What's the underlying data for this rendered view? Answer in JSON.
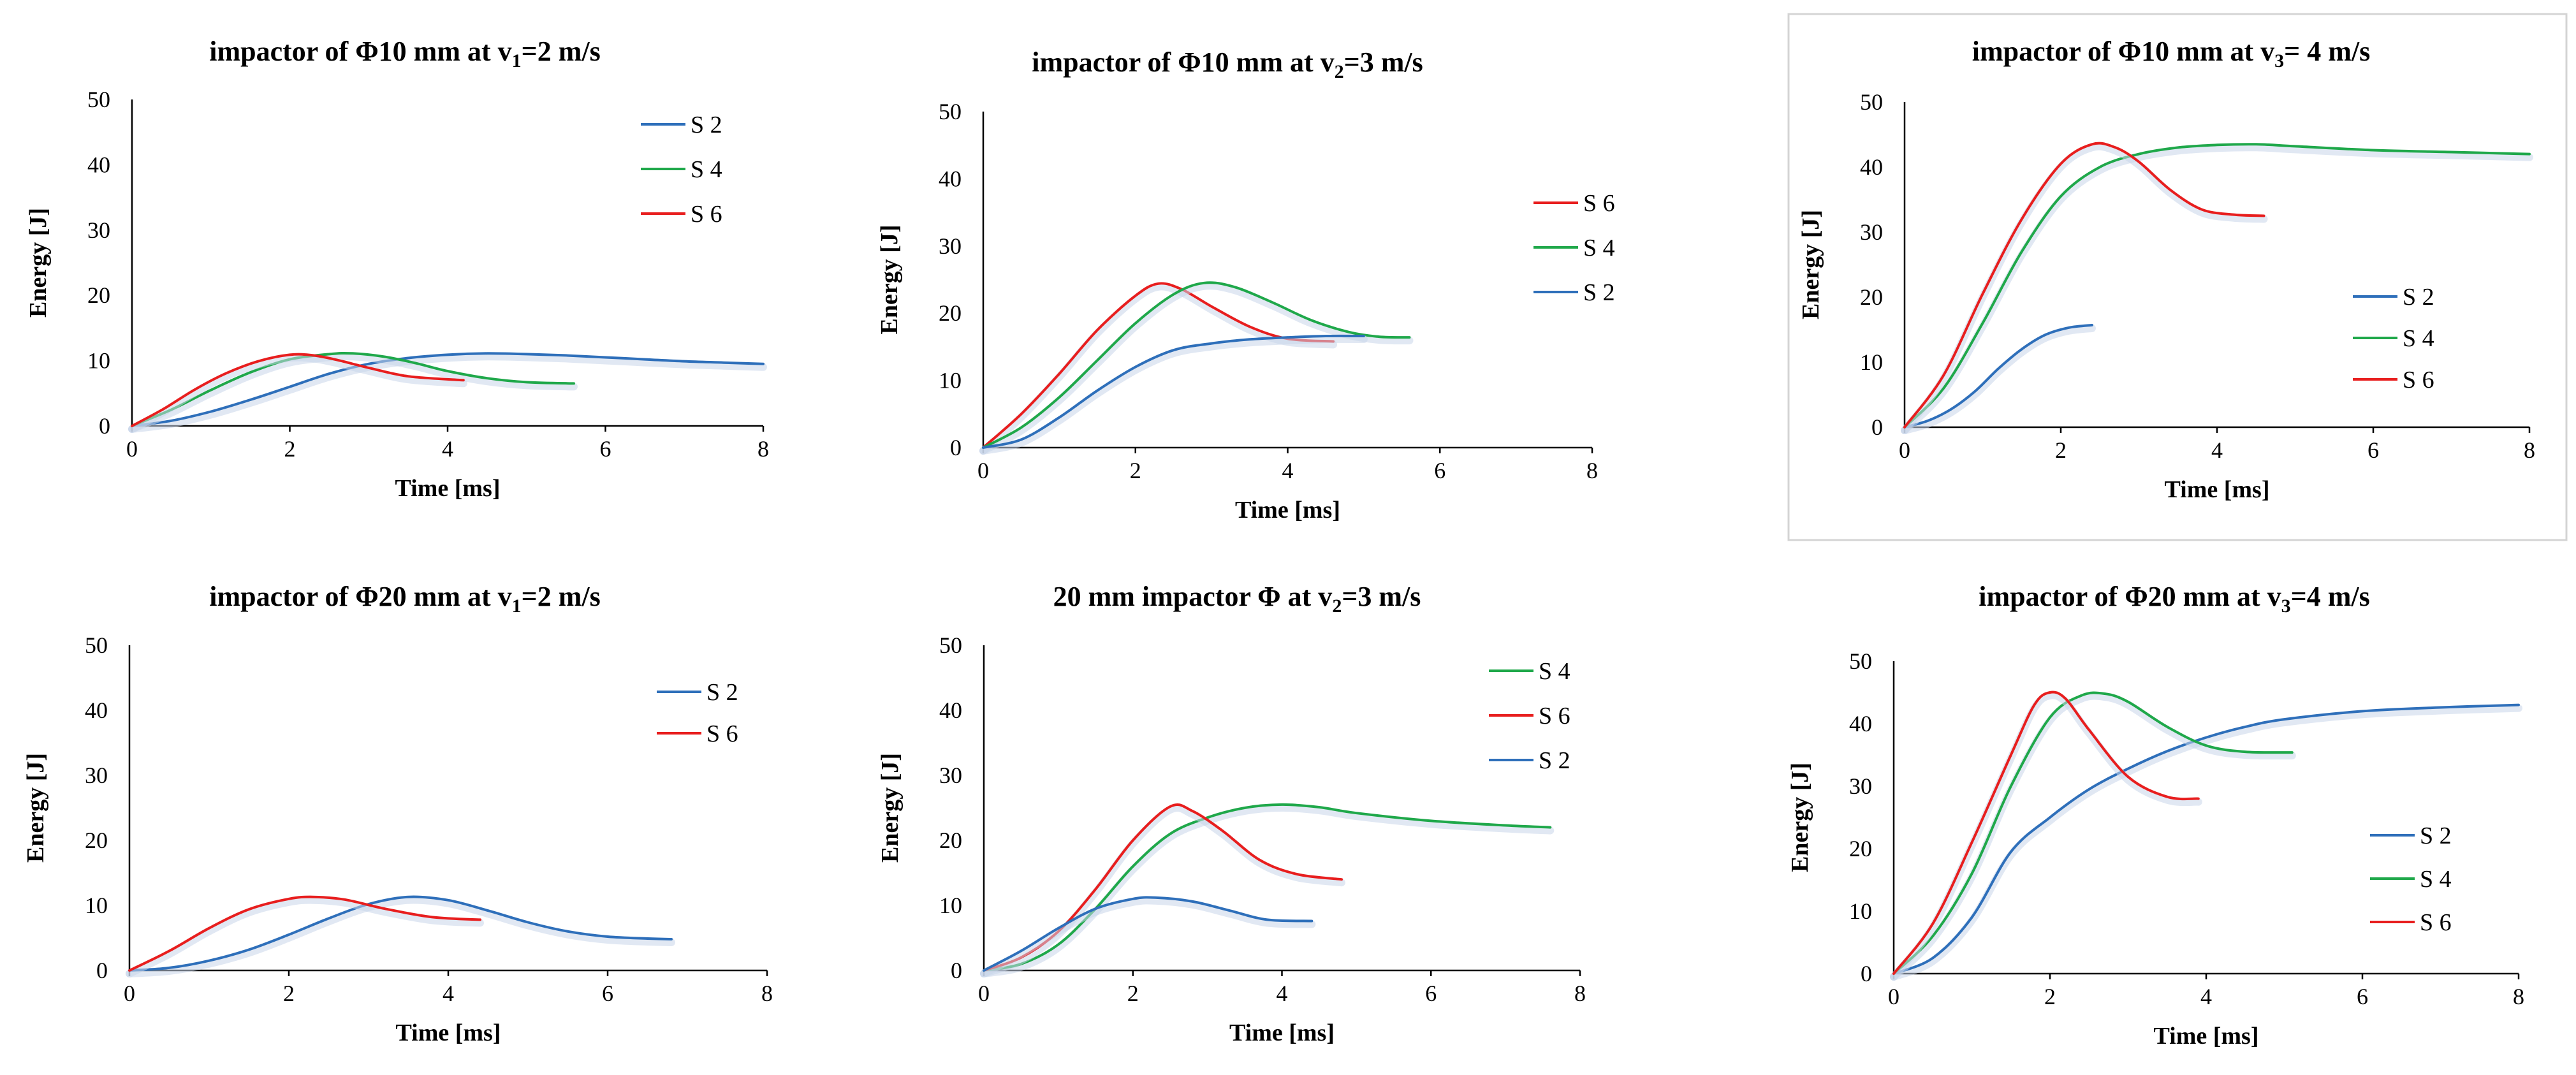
{
  "colors": {
    "S 2": "#2e6fba",
    "S 4": "#1fa84a",
    "S 6": "#e81e1e",
    "axis": "#000000",
    "frame": "#d4d4d4"
  },
  "chart_data": [
    {
      "type": "line",
      "title_pre": "impactor of Φ10 mm at v",
      "title_sub": "1",
      "title_post": "=2 m/s",
      "xlabel": "Time [ms]",
      "ylabel": "Energy [J]",
      "xlim": [
        0,
        8
      ],
      "ylim": [
        0,
        50
      ],
      "xticks": [
        "0",
        "2",
        "4",
        "6",
        "8"
      ],
      "yticks": [
        "0",
        "10",
        "20",
        "30",
        "40",
        "50"
      ],
      "legend": [
        "S 2",
        "S 4",
        "S 6"
      ],
      "series": [
        {
          "name": "S 2",
          "x": [
            0,
            0.5,
            1,
            1.5,
            2,
            2.5,
            3,
            3.5,
            4,
            4.5,
            5,
            5.5,
            6,
            6.5,
            7,
            7.5,
            8
          ],
          "y": [
            0,
            0.8,
            2.2,
            4,
            6,
            8,
            9.5,
            10.4,
            10.9,
            11.1,
            11,
            10.8,
            10.5,
            10.2,
            9.9,
            9.7,
            9.5
          ]
        },
        {
          "name": "S 4",
          "x": [
            0,
            0.5,
            1,
            1.5,
            2,
            2.5,
            2.8,
            3.2,
            3.6,
            4,
            4.5,
            5,
            5.6
          ],
          "y": [
            0,
            2.5,
            5.5,
            8.2,
            10.2,
            11,
            11.1,
            10.6,
            9.6,
            8.4,
            7.3,
            6.7,
            6.5
          ]
        },
        {
          "name": "S 6",
          "x": [
            0,
            0.4,
            0.8,
            1.2,
            1.6,
            2,
            2.3,
            2.6,
            3,
            3.5,
            4.2
          ],
          "y": [
            0,
            2.6,
            5.6,
            8.1,
            9.9,
            10.9,
            10.8,
            10.1,
            8.9,
            7.6,
            7
          ]
        }
      ]
    },
    {
      "type": "line",
      "title_pre": "impactor of Φ10 mm at v",
      "title_sub": "2",
      "title_post": "=3 m/s",
      "xlabel": "Time [ms]",
      "ylabel": "Energy [J]",
      "xlim": [
        0,
        8
      ],
      "ylim": [
        0,
        50
      ],
      "xticks": [
        "0",
        "2",
        "4",
        "6",
        "8"
      ],
      "yticks": [
        "0",
        "10",
        "20",
        "30",
        "40",
        "50"
      ],
      "legend": [
        "S 6",
        "S 4",
        "S 2"
      ],
      "series": [
        {
          "name": "S 6",
          "x": [
            0,
            0.5,
            1,
            1.5,
            2,
            2.3,
            2.6,
            3,
            3.5,
            4,
            4.6
          ],
          "y": [
            0,
            5,
            11,
            17.5,
            22.6,
            24.4,
            23.6,
            21,
            18,
            16.2,
            15.8
          ]
        },
        {
          "name": "S 4",
          "x": [
            0,
            0.5,
            1,
            1.5,
            2,
            2.5,
            2.9,
            3.3,
            3.8,
            4.3,
            4.8,
            5.2,
            5.6
          ],
          "y": [
            0,
            3,
            7.5,
            13,
            18.5,
            22.8,
            24.5,
            23.9,
            21.6,
            19,
            17.2,
            16.5,
            16.4
          ]
        },
        {
          "name": "S 2",
          "x": [
            0,
            0.5,
            1,
            1.5,
            2,
            2.5,
            3,
            3.5,
            4,
            4.5,
            5
          ],
          "y": [
            0,
            1.2,
            4.5,
            8.5,
            12,
            14.5,
            15.5,
            16.1,
            16.4,
            16.6,
            16.6
          ]
        }
      ]
    },
    {
      "type": "line",
      "title_pre": "impactor of Φ10 mm at v",
      "title_sub": "3",
      "title_post": "= 4 m/s",
      "xlabel": "Time [ms]",
      "ylabel": "Energy [J]",
      "xlim": [
        0,
        8
      ],
      "ylim": [
        0,
        50
      ],
      "xticks": [
        "0",
        "2",
        "4",
        "6",
        "8"
      ],
      "yticks": [
        "0",
        "10",
        "20",
        "30",
        "40",
        "50"
      ],
      "legend": [
        "S 2",
        "S 4",
        "S 6"
      ],
      "series": [
        {
          "name": "S 2",
          "x": [
            0,
            0.3,
            0.6,
            0.9,
            1.2,
            1.5,
            1.8,
            2.1,
            2.4
          ],
          "y": [
            0,
            1,
            2.8,
            5.5,
            9,
            12,
            14.2,
            15.3,
            15.7
          ]
        },
        {
          "name": "S 4",
          "x": [
            0,
            0.5,
            1,
            1.5,
            2,
            2.5,
            3,
            3.5,
            4,
            4.5,
            5,
            6,
            7,
            8
          ],
          "y": [
            0,
            6,
            16,
            27,
            35.5,
            40,
            42,
            43,
            43.4,
            43.5,
            43.2,
            42.6,
            42.3,
            42
          ]
        },
        {
          "name": "S 6",
          "x": [
            0,
            0.5,
            1,
            1.5,
            2,
            2.4,
            2.7,
            3,
            3.4,
            3.8,
            4.2,
            4.6
          ],
          "y": [
            0,
            8,
            20.5,
            32,
            40.5,
            43.5,
            43,
            40.8,
            36.5,
            33.5,
            32.7,
            32.5
          ]
        }
      ]
    },
    {
      "type": "line",
      "title_pre": "impactor of Φ20 mm at v",
      "title_sub": "1",
      "title_post": "=2 m/s",
      "xlabel": "Time [ms]",
      "ylabel": "Energy [J]",
      "xlim": [
        0,
        8
      ],
      "ylim": [
        0,
        50
      ],
      "xticks": [
        "0",
        "2",
        "4",
        "6",
        "8"
      ],
      "yticks": [
        "0",
        "10",
        "20",
        "30",
        "40",
        "50"
      ],
      "legend": [
        "S 2",
        "S 6"
      ],
      "series": [
        {
          "name": "S 2",
          "x": [
            0,
            0.5,
            1,
            1.5,
            2,
            2.5,
            3,
            3.5,
            4,
            4.5,
            5,
            5.5,
            6,
            6.5,
            6.8
          ],
          "y": [
            0,
            0.4,
            1.5,
            3.2,
            5.5,
            8,
            10.2,
            11.3,
            10.8,
            9.2,
            7.4,
            6,
            5.2,
            4.9,
            4.8
          ]
        },
        {
          "name": "S 6",
          "x": [
            0,
            0.5,
            1,
            1.5,
            2,
            2.3,
            2.7,
            3.2,
            3.8,
            4.4
          ],
          "y": [
            0,
            3,
            6.5,
            9.4,
            11,
            11.3,
            10.9,
            9.5,
            8.2,
            7.8
          ]
        }
      ]
    },
    {
      "type": "line",
      "title_pre": "20 mm impactor Φ at v",
      "title_sub": "2",
      "title_post": "=3 m/s",
      "xlabel": "Time [ms]",
      "ylabel": "Energy [J]",
      "xlim": [
        0,
        8
      ],
      "ylim": [
        0,
        50
      ],
      "xticks": [
        "0",
        "2",
        "4",
        "6",
        "8"
      ],
      "yticks": [
        "0",
        "10",
        "20",
        "30",
        "40",
        "50"
      ],
      "legend": [
        "S 4",
        "S 6",
        "S 2"
      ],
      "series": [
        {
          "name": "S 4",
          "x": [
            0,
            0.5,
            1,
            1.5,
            2,
            2.5,
            3,
            3.5,
            4,
            4.5,
            5,
            6,
            7,
            7.6
          ],
          "y": [
            0,
            1,
            4,
            9.5,
            16,
            21,
            23.5,
            25,
            25.5,
            25.1,
            24.2,
            23,
            22.3,
            22
          ]
        },
        {
          "name": "S 6",
          "x": [
            0,
            0.5,
            1,
            1.5,
            2,
            2.5,
            2.8,
            3.2,
            3.7,
            4.2,
            4.8
          ],
          "y": [
            0,
            2,
            6,
            12.5,
            20,
            25.2,
            24.5,
            21.5,
            17,
            14.8,
            14
          ]
        },
        {
          "name": "S 2",
          "x": [
            0,
            0.5,
            1,
            1.5,
            2,
            2.3,
            2.8,
            3.3,
            3.8,
            4.4
          ],
          "y": [
            0,
            3,
            6.5,
            9.5,
            11,
            11.2,
            10.6,
            9.2,
            7.8,
            7.6
          ]
        }
      ]
    },
    {
      "type": "line",
      "title_pre": "impactor of Φ20 mm at v",
      "title_sub": "3",
      "title_post": "=4 m/s",
      "xlabel": "Time [ms]",
      "ylabel": "Energy [J]",
      "xlim": [
        0,
        8
      ],
      "ylim": [
        0,
        50
      ],
      "xticks": [
        "0",
        "2",
        "4",
        "6",
        "8"
      ],
      "yticks": [
        "0",
        "10",
        "20",
        "30",
        "40",
        "50"
      ],
      "legend": [
        "S 2",
        "S 4",
        "S 6"
      ],
      "series": [
        {
          "name": "S 2",
          "x": [
            0,
            0.5,
            1,
            1.5,
            2,
            2.5,
            3,
            3.5,
            4,
            4.5,
            5,
            6,
            7,
            8
          ],
          "y": [
            0,
            2.5,
            9,
            19.5,
            25,
            29.5,
            32.8,
            35.6,
            37.8,
            39.5,
            40.7,
            42,
            42.6,
            43
          ]
        },
        {
          "name": "S 4",
          "x": [
            0,
            0.5,
            1,
            1.5,
            2,
            2.4,
            2.7,
            3,
            3.5,
            4,
            4.5,
            5.1
          ],
          "y": [
            0,
            6,
            16,
            30,
            41,
            44.5,
            44.8,
            43.5,
            39.5,
            36.5,
            35.5,
            35.4
          ]
        },
        {
          "name": "S 6",
          "x": [
            0,
            0.5,
            1,
            1.5,
            1.8,
            2,
            2.2,
            2.5,
            3,
            3.5,
            3.9
          ],
          "y": [
            0,
            8,
            21,
            35,
            43,
            45,
            44,
            39,
            31.5,
            28.3,
            28
          ]
        }
      ]
    }
  ]
}
